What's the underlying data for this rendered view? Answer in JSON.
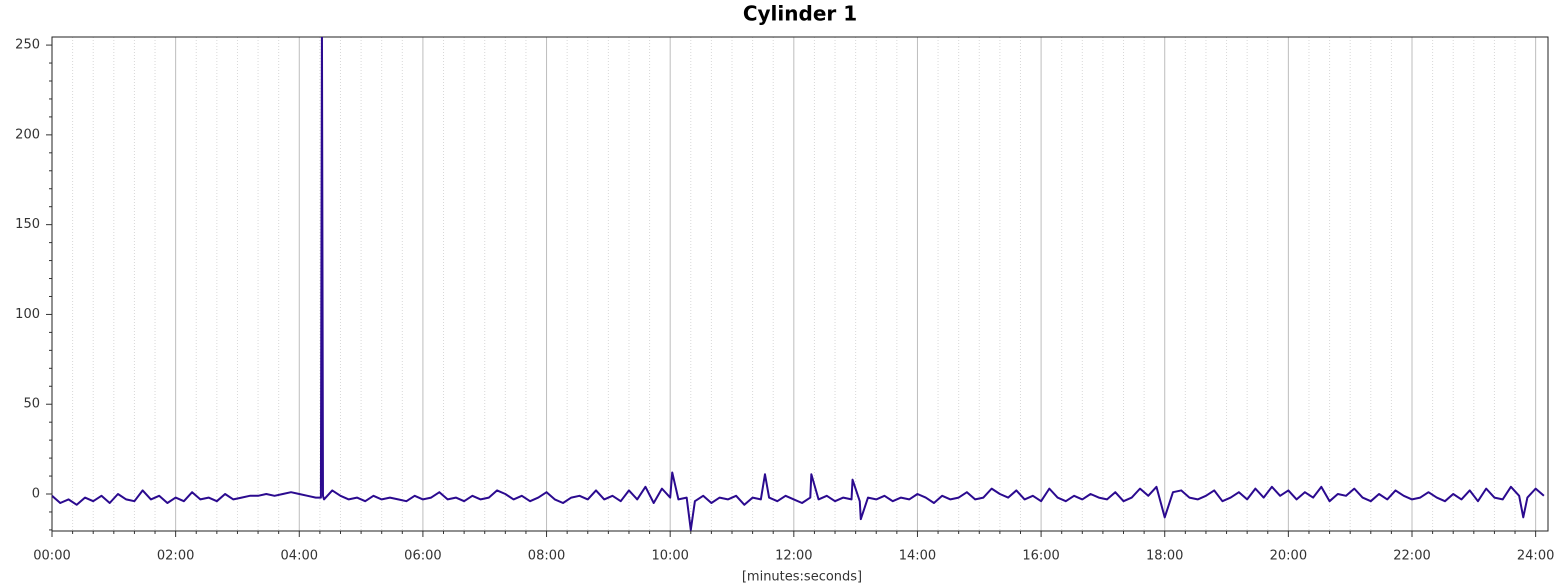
{
  "chart_data": {
    "type": "line",
    "title": "Cylinder 1",
    "x_label": "[minutes:seconds]",
    "x": [
      0,
      8,
      16,
      24,
      32,
      40,
      48,
      56,
      64,
      72,
      80,
      88,
      96,
      104,
      112,
      120,
      128,
      136,
      144,
      152,
      160,
      168,
      176,
      184,
      192,
      200,
      208,
      216,
      224,
      232,
      240,
      248,
      256,
      261,
      262,
      263,
      264,
      272,
      280,
      288,
      296,
      304,
      312,
      320,
      328,
      336,
      344,
      352,
      360,
      368,
      376,
      384,
      392,
      400,
      408,
      416,
      424,
      432,
      440,
      448,
      456,
      464,
      472,
      480,
      488,
      496,
      504,
      512,
      520,
      528,
      536,
      544,
      552,
      560,
      568,
      576,
      584,
      592,
      600,
      602,
      608,
      616,
      620,
      624,
      632,
      640,
      648,
      656,
      664,
      672,
      680,
      688,
      692,
      696,
      704,
      712,
      720,
      728,
      736,
      737,
      744,
      752,
      760,
      768,
      776,
      777,
      784,
      785,
      792,
      800,
      808,
      816,
      824,
      832,
      840,
      848,
      856,
      864,
      872,
      880,
      888,
      896,
      904,
      912,
      920,
      928,
      936,
      944,
      952,
      960,
      968,
      976,
      984,
      992,
      1000,
      1008,
      1016,
      1024,
      1032,
      1040,
      1048,
      1056,
      1064,
      1072,
      1080,
      1088,
      1096,
      1104,
      1112,
      1120,
      1128,
      1136,
      1144,
      1152,
      1160,
      1168,
      1176,
      1184,
      1192,
      1200,
      1208,
      1216,
      1224,
      1232,
      1240,
      1248,
      1256,
      1264,
      1272,
      1280,
      1288,
      1296,
      1304,
      1312,
      1320,
      1328,
      1336,
      1344,
      1352,
      1360,
      1368,
      1376,
      1384,
      1392,
      1400,
      1408,
      1416,
      1424,
      1428,
      1432,
      1440,
      1448
    ],
    "series": [
      {
        "color": "#2b0a8f",
        "values": [
          -1,
          -5,
          -3,
          -6,
          -2,
          -4,
          -1,
          -5,
          0,
          -3,
          -4,
          2,
          -3,
          -1,
          -5,
          -2,
          -4,
          1,
          -3,
          -2,
          -4,
          0,
          -3,
          -2,
          -1,
          -1,
          0,
          -1,
          0,
          1,
          0,
          -1,
          -2,
          -2,
          260,
          -1,
          -3,
          2,
          -1,
          -3,
          -2,
          -4,
          -1,
          -3,
          -2,
          -3,
          -4,
          -1,
          -3,
          -2,
          1,
          -3,
          -2,
          -4,
          -1,
          -3,
          -2,
          2,
          0,
          -3,
          -1,
          -4,
          -2,
          1,
          -3,
          -5,
          -2,
          -1,
          -3,
          2,
          -3,
          -1,
          -4,
          2,
          -3,
          4,
          -5,
          3,
          -2,
          12,
          -3,
          -2,
          -20,
          -4,
          -1,
          -5,
          -2,
          -3,
          -1,
          -6,
          -2,
          -3,
          11,
          -2,
          -4,
          -1,
          -3,
          -5,
          -2,
          11,
          -3,
          -1,
          -4,
          -2,
          -3,
          8,
          -4,
          -14,
          -2,
          -3,
          -1,
          -4,
          -2,
          -3,
          0,
          -2,
          -5,
          -1,
          -3,
          -2,
          1,
          -3,
          -2,
          3,
          0,
          -2,
          2,
          -3,
          -1,
          -4,
          3,
          -2,
          -4,
          -1,
          -3,
          0,
          -2,
          -3,
          1,
          -4,
          -2,
          3,
          -1,
          4,
          -13,
          1,
          2,
          -2,
          -3,
          -1,
          2,
          -4,
          -2,
          1,
          -3,
          3,
          -2,
          4,
          -1,
          2,
          -3,
          1,
          -2,
          4,
          -4,
          0,
          -1,
          3,
          -2,
          -4,
          0,
          -3,
          2,
          -1,
          -3,
          -2,
          1,
          -2,
          -4,
          0,
          -3,
          2,
          -4,
          3,
          -2,
          -3,
          4,
          -1,
          -13,
          -2,
          3,
          -1
        ]
      }
    ],
    "xlim": [
      0,
      1452
    ],
    "ylim": [
      -20.6,
      254.5
    ],
    "xticks": [
      {
        "value": 0,
        "label": "00:00"
      },
      {
        "value": 120,
        "label": "02:00"
      },
      {
        "value": 240,
        "label": "04:00"
      },
      {
        "value": 360,
        "label": "06:00"
      },
      {
        "value": 480,
        "label": "08:00"
      },
      {
        "value": 600,
        "label": "10:00"
      },
      {
        "value": 720,
        "label": "12:00"
      },
      {
        "value": 840,
        "label": "14:00"
      },
      {
        "value": 960,
        "label": "16:00"
      },
      {
        "value": 1080,
        "label": "18:00"
      },
      {
        "value": 1200,
        "label": "20:00"
      },
      {
        "value": 1320,
        "label": "22:00"
      },
      {
        "value": 1440,
        "label": "24:00"
      }
    ],
    "xminorticks": [
      20,
      40,
      60,
      80,
      100,
      140,
      160,
      180,
      200,
      220,
      260,
      280,
      300,
      320,
      340,
      380,
      400,
      420,
      440,
      460,
      500,
      520,
      540,
      560,
      580,
      620,
      640,
      660,
      680,
      700,
      740,
      760,
      780,
      800,
      820,
      860,
      880,
      900,
      920,
      940,
      980,
      1000,
      1020,
      1040,
      1060,
      1100,
      1120,
      1140,
      1160,
      1180,
      1220,
      1240,
      1260,
      1280,
      1300,
      1340,
      1360,
      1380,
      1400,
      1420
    ],
    "yticks": [
      0,
      50,
      100,
      150,
      200,
      250
    ],
    "yminorticks": [
      -20,
      -10,
      10,
      20,
      30,
      40,
      60,
      70,
      80,
      90,
      110,
      120,
      130,
      140,
      160,
      170,
      180,
      190,
      210,
      220,
      230,
      240
    ],
    "grid": true
  }
}
